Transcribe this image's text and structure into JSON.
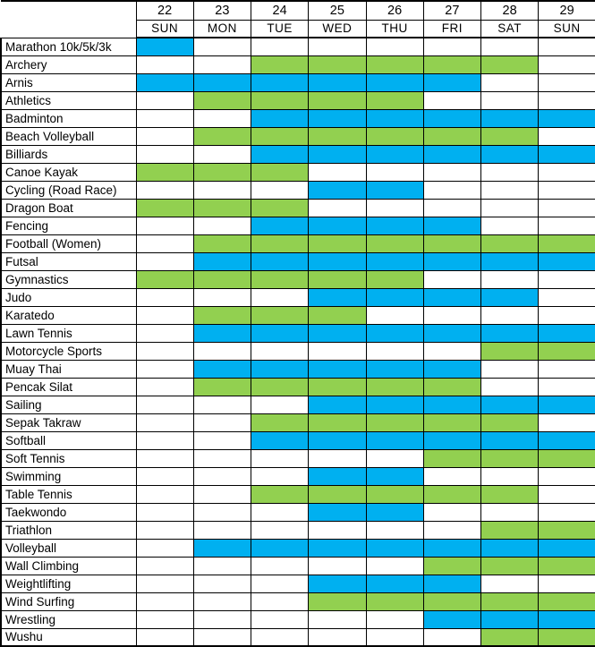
{
  "colors": {
    "blue": "#00B0F0",
    "green": "#92D050",
    "grid": "#000000",
    "background": "#FFFFFF"
  },
  "chart_data": {
    "type": "table",
    "legend_position": "none",
    "grid": true,
    "columns": [
      {
        "date": "22",
        "day": "SUN"
      },
      {
        "date": "23",
        "day": "MON"
      },
      {
        "date": "24",
        "day": "TUE"
      },
      {
        "date": "25",
        "day": "WED"
      },
      {
        "date": "26",
        "day": "THU"
      },
      {
        "date": "27",
        "day": "FRI"
      },
      {
        "date": "28",
        "day": "SAT"
      },
      {
        "date": "29",
        "day": "SUN"
      }
    ],
    "rows": [
      {
        "sport": "Marathon 10k/5k/3k",
        "color": "blue",
        "dates": [
          "22"
        ]
      },
      {
        "sport": "Archery",
        "color": "green",
        "dates": [
          "24",
          "25",
          "26",
          "27",
          "28"
        ]
      },
      {
        "sport": "Arnis",
        "color": "blue",
        "dates": [
          "22",
          "23",
          "24",
          "25",
          "26",
          "27"
        ]
      },
      {
        "sport": "Athletics",
        "color": "green",
        "dates": [
          "23",
          "24",
          "25",
          "26"
        ]
      },
      {
        "sport": "Badminton",
        "color": "blue",
        "dates": [
          "24",
          "25",
          "26",
          "27",
          "28",
          "29"
        ]
      },
      {
        "sport": "Beach Volleyball",
        "color": "green",
        "dates": [
          "23",
          "24",
          "25",
          "26",
          "27",
          "28"
        ]
      },
      {
        "sport": "Billiards",
        "color": "blue",
        "dates": [
          "24",
          "25",
          "26",
          "27",
          "28",
          "29"
        ]
      },
      {
        "sport": "Canoe Kayak",
        "color": "green",
        "dates": [
          "22",
          "23",
          "24"
        ]
      },
      {
        "sport": "Cycling (Road Race)",
        "color": "blue",
        "dates": [
          "25",
          "26"
        ]
      },
      {
        "sport": "Dragon Boat",
        "color": "green",
        "dates": [
          "22",
          "23",
          "24"
        ]
      },
      {
        "sport": "Fencing",
        "color": "blue",
        "dates": [
          "24",
          "25",
          "26",
          "27"
        ]
      },
      {
        "sport": "Football (Women)",
        "color": "green",
        "dates": [
          "23",
          "24",
          "25",
          "26",
          "27",
          "28",
          "29"
        ]
      },
      {
        "sport": "Futsal",
        "color": "blue",
        "dates": [
          "23",
          "24",
          "25",
          "26",
          "27",
          "28",
          "29"
        ]
      },
      {
        "sport": "Gymnastics",
        "color": "green",
        "dates": [
          "22",
          "23",
          "24",
          "25",
          "26"
        ]
      },
      {
        "sport": "Judo",
        "color": "blue",
        "dates": [
          "25",
          "26",
          "27",
          "28"
        ]
      },
      {
        "sport": "Karatedo",
        "color": "green",
        "dates": [
          "23",
          "24",
          "25"
        ]
      },
      {
        "sport": "Lawn Tennis",
        "color": "blue",
        "dates": [
          "23",
          "24",
          "25",
          "26",
          "27",
          "28",
          "29"
        ]
      },
      {
        "sport": "Motorcycle Sports",
        "color": "green",
        "dates": [
          "28",
          "29"
        ]
      },
      {
        "sport": "Muay Thai",
        "color": "blue",
        "dates": [
          "23",
          "24",
          "25",
          "26",
          "27"
        ]
      },
      {
        "sport": "Pencak Silat",
        "color": "green",
        "dates": [
          "23",
          "24",
          "25",
          "26",
          "27"
        ]
      },
      {
        "sport": "Sailing",
        "color": "blue",
        "dates": [
          "25",
          "26",
          "27",
          "28",
          "29"
        ]
      },
      {
        "sport": "Sepak Takraw",
        "color": "green",
        "dates": [
          "24",
          "25",
          "26",
          "27",
          "28"
        ]
      },
      {
        "sport": "Softball",
        "color": "blue",
        "dates": [
          "24",
          "25",
          "26",
          "27",
          "28",
          "29"
        ]
      },
      {
        "sport": "Soft Tennis",
        "color": "green",
        "dates": [
          "27",
          "28",
          "29"
        ]
      },
      {
        "sport": "Swimming",
        "color": "blue",
        "dates": [
          "25",
          "26"
        ]
      },
      {
        "sport": "Table Tennis",
        "color": "green",
        "dates": [
          "24",
          "25",
          "26",
          "27",
          "28"
        ]
      },
      {
        "sport": "Taekwondo",
        "color": "blue",
        "dates": [
          "25",
          "26"
        ]
      },
      {
        "sport": "Triathlon",
        "color": "green",
        "dates": [
          "28",
          "29"
        ]
      },
      {
        "sport": "Volleyball",
        "color": "blue",
        "dates": [
          "23",
          "24",
          "25",
          "26",
          "27",
          "28",
          "29"
        ]
      },
      {
        "sport": "Wall Climbing",
        "color": "green",
        "dates": [
          "27",
          "28",
          "29"
        ]
      },
      {
        "sport": "Weightlifting",
        "color": "blue",
        "dates": [
          "25",
          "26",
          "27"
        ]
      },
      {
        "sport": "Wind Surfing",
        "color": "green",
        "dates": [
          "25",
          "26",
          "27",
          "28",
          "29"
        ]
      },
      {
        "sport": "Wrestling",
        "color": "blue",
        "dates": [
          "27",
          "28",
          "29"
        ]
      },
      {
        "sport": "Wushu",
        "color": "green",
        "dates": [
          "28",
          "29"
        ]
      }
    ]
  }
}
